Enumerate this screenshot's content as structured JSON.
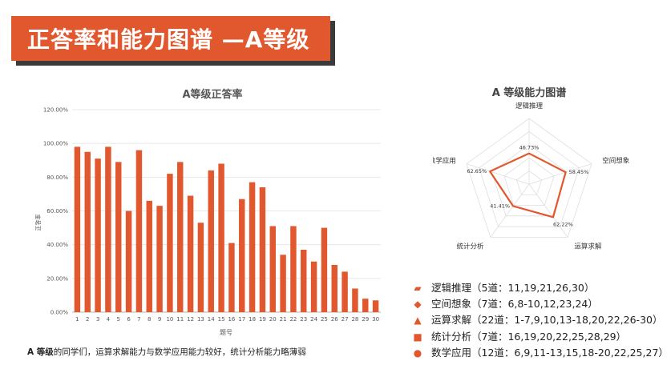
{
  "header": {
    "title": "正答率和能力图谱 —A等级"
  },
  "colors": {
    "accent": "#e2582e",
    "grid": "#e3e3e3",
    "axis": "#999999"
  },
  "chart_data": [
    {
      "type": "bar",
      "title": "A等级正答率",
      "xlabel": "题号",
      "ylabel": "正答率",
      "ylim": [
        0,
        120
      ],
      "yticks": [
        "0.00%",
        "20.00%",
        "40.00%",
        "60.00%",
        "80.00%",
        "100.00%",
        "120.00%"
      ],
      "grid": true,
      "categories": [
        "1",
        "2",
        "3",
        "4",
        "5",
        "6",
        "7",
        "8",
        "9",
        "10",
        "11",
        "12",
        "13",
        "14",
        "15",
        "16",
        "17",
        "18",
        "19",
        "20",
        "21",
        "22",
        "23",
        "24",
        "25",
        "26",
        "27",
        "28",
        "29",
        "30"
      ],
      "values": [
        98,
        95,
        91,
        98,
        89,
        60,
        96,
        66,
        63,
        82,
        89,
        69,
        53,
        84,
        88,
        41,
        67,
        77,
        74,
        51,
        34,
        51,
        37,
        30,
        50,
        28,
        24,
        14,
        8,
        7
      ]
    },
    {
      "type": "radar",
      "title": "A 等级能力图谱",
      "rmax": 100,
      "axes": [
        "逻辑推理",
        "空间想象",
        "运算求解",
        "统计分析",
        "数学应用"
      ],
      "values": [
        46.73,
        58.45,
        62.22,
        41.41,
        62.65
      ],
      "value_labels": [
        "46.73%",
        "58.45%",
        "62.22%",
        "41.41%",
        "62.65%"
      ]
    }
  ],
  "legend": [
    {
      "marker": "parallelogram",
      "text": "逻辑推理（5道：11,19,21,26,30）"
    },
    {
      "marker": "diamond",
      "text": "空间想象（7道：6,8-10,12,23,24）"
    },
    {
      "marker": "triangle",
      "text": "运算求解（22道：1-7,9,10,13-18,20,22,26-30）"
    },
    {
      "marker": "square",
      "text": "统计分析（7道：16,19,20,22,25,28,29）"
    },
    {
      "marker": "circle",
      "text": "数学应用（12道：6,9,11-13,15,18-20,22,25,27）"
    }
  ],
  "note": {
    "lead": "A 等级",
    "text": "的同学们，运算求解能力与数学应用能力较好，统计分析能力略薄弱"
  }
}
